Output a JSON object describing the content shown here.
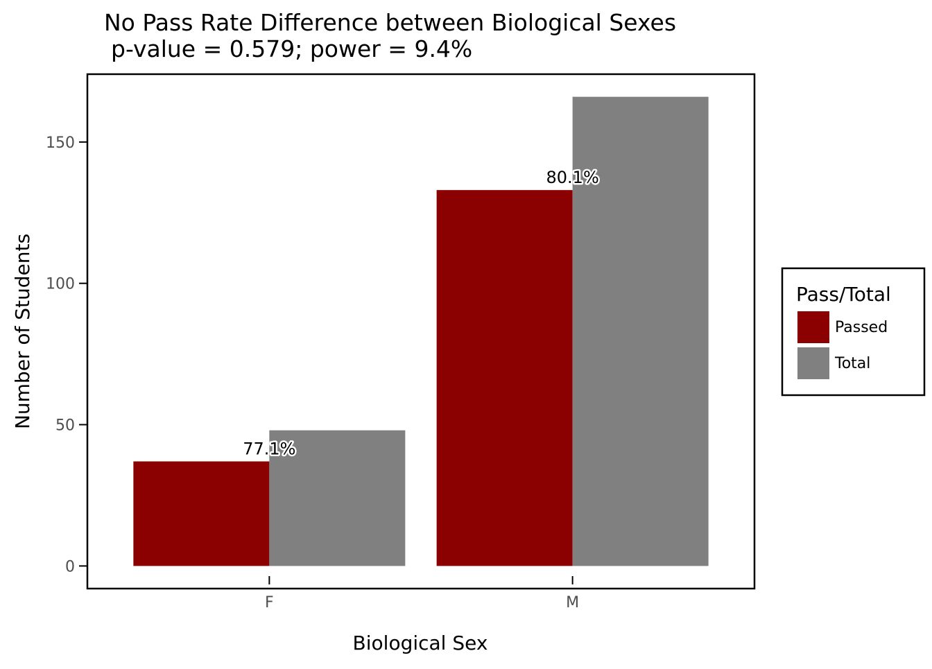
{
  "chart_data": {
    "type": "bar",
    "title": "No Pass Rate Difference between Biological Sexes",
    "subtitle": "p-value = 0.579; power = 9.4%",
    "xlabel": "Biological Sex",
    "ylabel": "Number of Students",
    "categories": [
      "F",
      "M"
    ],
    "series": [
      {
        "name": "Passed",
        "values": [
          37,
          133
        ],
        "color": "#8b0000"
      },
      {
        "name": "Total",
        "values": [
          48,
          166
        ],
        "color": "#808080"
      }
    ],
    "data_labels": [
      "77.1%",
      "80.1%"
    ],
    "ylim": [
      -8,
      174
    ],
    "yticks": [
      0,
      50,
      100,
      150
    ],
    "ytick_labels": [
      "0",
      "50",
      "100",
      "150"
    ],
    "grid": false,
    "legend": {
      "title": "Pass/Total",
      "position": "right"
    }
  }
}
